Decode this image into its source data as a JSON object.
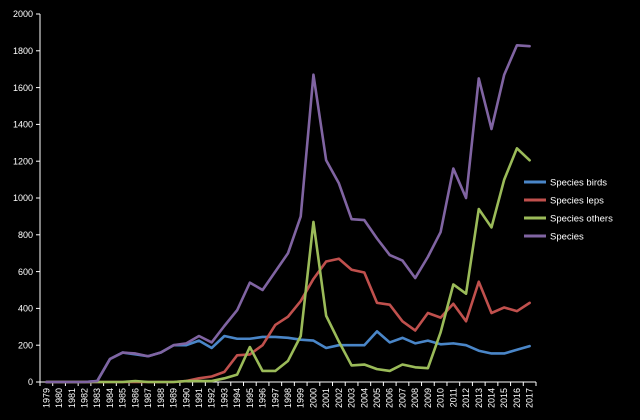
{
  "chart_data": {
    "type": "line",
    "title": "",
    "xlabel": "",
    "ylabel": "",
    "ylim": [
      0,
      2000
    ],
    "yticks": [
      0,
      200,
      400,
      600,
      800,
      1000,
      1200,
      1400,
      1600,
      1800,
      2000
    ],
    "grid": false,
    "legend_position": "right",
    "x": [
      "1979",
      "1980",
      "1981",
      "1982",
      "1983",
      "1984",
      "1985",
      "1986",
      "1987",
      "1988",
      "1989",
      "1990",
      "1991",
      "1992",
      "1993",
      "1994",
      "1995",
      "1996",
      "1997",
      "1998",
      "1999",
      "2000",
      "2001",
      "2002",
      "2003",
      "2004",
      "2005",
      "2006",
      "2007",
      "2008",
      "2009",
      "2010",
      "2011",
      "2012",
      "2013",
      "2014",
      "2015",
      "2016",
      "2017"
    ],
    "series": [
      {
        "name": "Species birds",
        "color": "#4a86c8",
        "values": [
          0,
          0,
          0,
          0,
          5,
          125,
          160,
          150,
          140,
          160,
          200,
          200,
          225,
          185,
          250,
          235,
          235,
          245,
          245,
          240,
          230,
          225,
          185,
          200,
          200,
          200,
          275,
          215,
          240,
          210,
          225,
          205,
          210,
          200,
          170,
          155,
          155,
          175,
          195
        ]
      },
      {
        "name": "Species leps",
        "color": "#c0504d",
        "values": [
          0,
          0,
          0,
          0,
          0,
          0,
          0,
          0,
          0,
          0,
          0,
          5,
          20,
          30,
          55,
          145,
          150,
          200,
          310,
          355,
          440,
          560,
          655,
          670,
          610,
          595,
          430,
          420,
          330,
          280,
          375,
          350,
          425,
          330,
          545,
          375,
          405,
          385,
          430
        ]
      },
      {
        "name": "Species others",
        "color": "#9bbb59",
        "values": [
          0,
          0,
          0,
          0,
          0,
          0,
          0,
          5,
          0,
          0,
          0,
          5,
          5,
          5,
          20,
          40,
          190,
          60,
          60,
          115,
          250,
          870,
          360,
          220,
          90,
          95,
          70,
          60,
          95,
          80,
          75,
          270,
          530,
          480,
          940,
          840,
          1100,
          1270,
          1205
        ]
      },
      {
        "name": "Species",
        "color": "#8064a2",
        "values": [
          0,
          0,
          0,
          0,
          5,
          125,
          160,
          155,
          140,
          160,
          200,
          210,
          250,
          215,
          305,
          390,
          540,
          500,
          600,
          700,
          900,
          1670,
          1205,
          1080,
          885,
          880,
          780,
          690,
          660,
          565,
          680,
          815,
          1160,
          1000,
          1650,
          1375,
          1670,
          1830,
          1825
        ]
      }
    ]
  },
  "legend": [
    {
      "label": "Species birds",
      "color": "#4a86c8"
    },
    {
      "label": "Species leps",
      "color": "#c0504d"
    },
    {
      "label": "Species others",
      "color": "#9bbb59"
    },
    {
      "label": "Species",
      "color": "#8064a2"
    }
  ]
}
